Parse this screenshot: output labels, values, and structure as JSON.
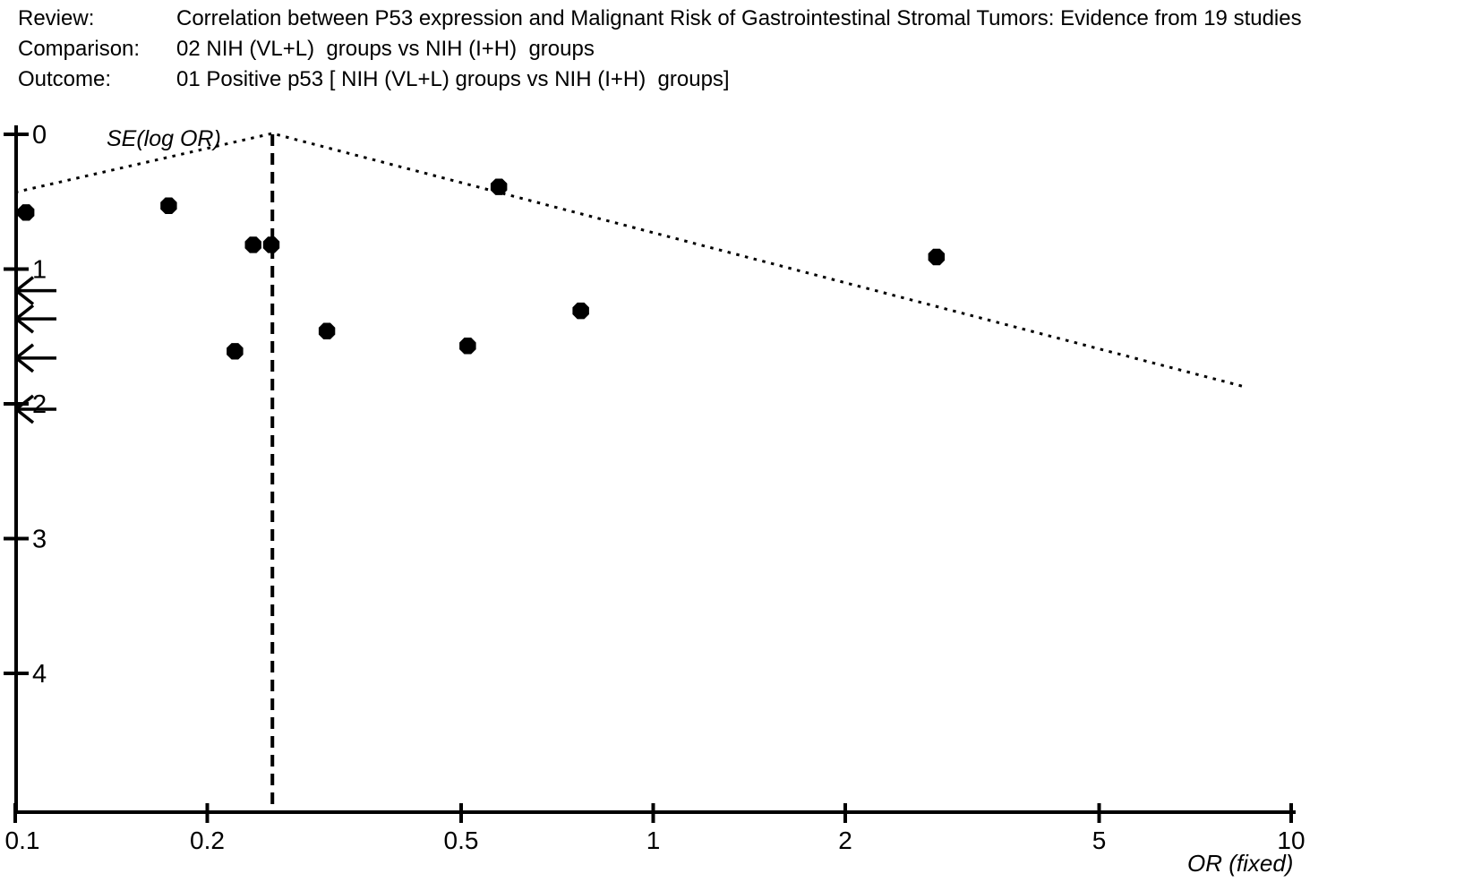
{
  "header": {
    "review_label": "Review:",
    "review_value": "Correlation between P53 expression and Malignant Risk of Gastrointestinal Stromal Tumors: Evidence from 19 studies",
    "comparison_label": "Comparison:",
    "comparison_value": "02 NIH (VL+L)  groups vs NIH (I+H)  groups",
    "outcome_label": "Outcome:",
    "outcome_value": "01 Positive p53 [ NIH (VL+L) groups vs NIH (I+H)  groups]"
  },
  "chart_data": {
    "type": "scatter",
    "subtype": "funnel-plot",
    "title": "",
    "xlabel": "OR (fixed)",
    "ylabel": "SE(log OR)",
    "x_scale": "log",
    "xlim": [
      0.1,
      10
    ],
    "x_ticks": [
      0.1,
      0.2,
      0.5,
      1,
      2,
      5,
      10
    ],
    "x_tick_labels": [
      "0.1",
      "0.2",
      "0.5",
      "1",
      "2",
      "5",
      "10"
    ],
    "ylim": [
      0,
      4
    ],
    "y_ticks": [
      0,
      1,
      2,
      3,
      4
    ],
    "y_tick_labels": [
      "0",
      "1",
      "2",
      "3",
      "4"
    ],
    "y_inverted": true,
    "grid": false,
    "legend": null,
    "pooled_or": 0.253,
    "points": [
      {
        "or": 0.104,
        "se": 0.58
      },
      {
        "or": 0.174,
        "se": 0.53
      },
      {
        "or": 0.236,
        "se": 0.82
      },
      {
        "or": 0.252,
        "se": 0.82
      },
      {
        "or": 0.221,
        "se": 1.61
      },
      {
        "or": 0.308,
        "se": 1.46
      },
      {
        "or": 0.512,
        "se": 1.57
      },
      {
        "or": 0.77,
        "se": 1.31
      },
      {
        "or": 0.573,
        "se": 0.39
      },
      {
        "or": 2.78,
        "se": 0.91
      }
    ],
    "offscale_arrows_se": [
      1.16,
      1.37,
      1.66,
      2.04
    ],
    "funnel": {
      "apex_or": 0.253,
      "left_end": {
        "or": 0.1,
        "se": 0.43
      },
      "right_end": {
        "or": 8.4,
        "se": 1.87
      }
    }
  },
  "colors": {
    "ink": "#000000",
    "background": "#ffffff"
  }
}
